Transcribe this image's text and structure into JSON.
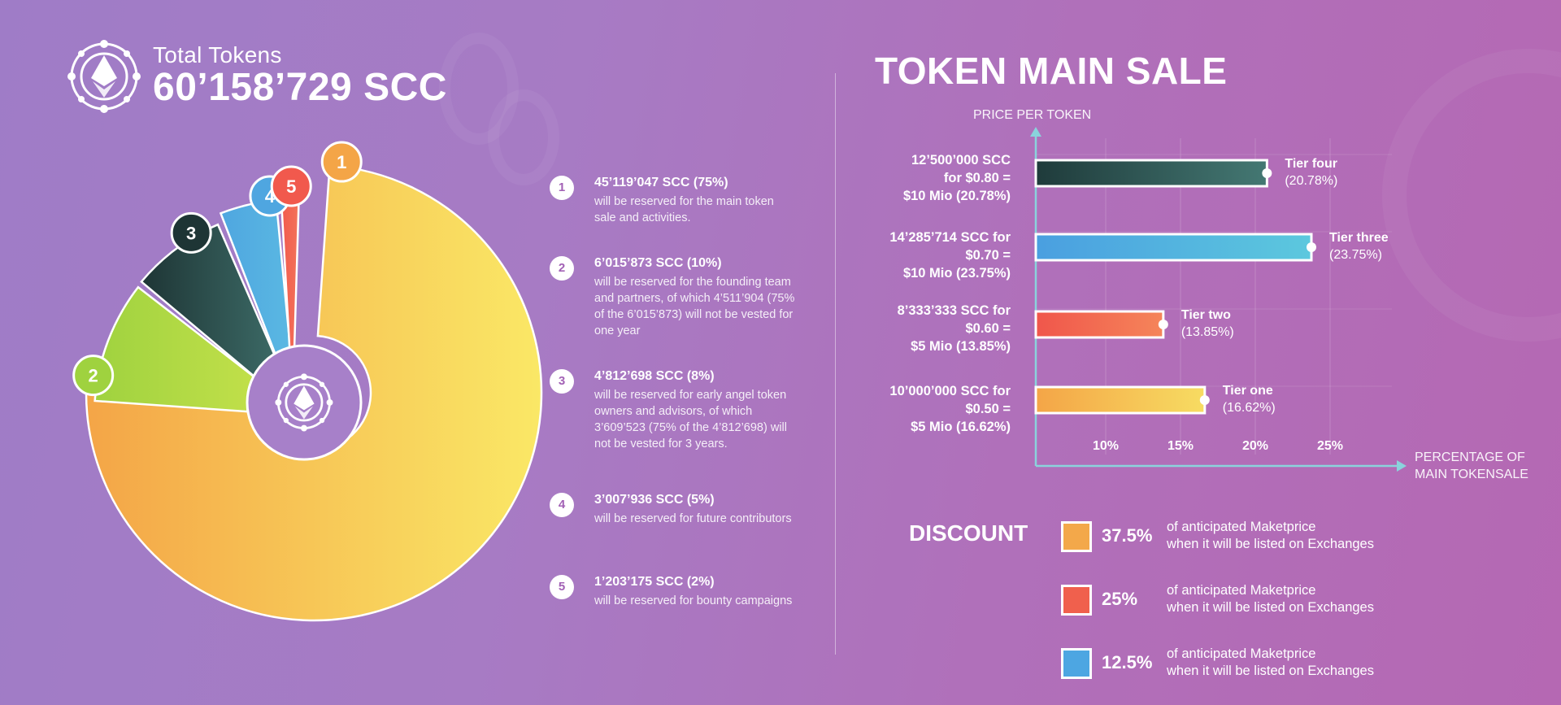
{
  "header": {
    "label": "Total Tokens",
    "value": "60’158’729 SCC",
    "logo": "token-emblem-icon"
  },
  "chart_data": [
    {
      "type": "pie",
      "title": "",
      "slices": [
        {
          "num": "1",
          "value": 75,
          "color": "#f4a547",
          "color2": "#fae866"
        },
        {
          "num": "2",
          "value": 10,
          "color": "#9fd23f",
          "color2": "#c2e04a"
        },
        {
          "num": "3",
          "value": 8,
          "color": "#1e3535",
          "color2": "#3c6a66"
        },
        {
          "num": "4",
          "value": 5,
          "color": "#4fa6e0",
          "color2": "#5ab8e2"
        },
        {
          "num": "5",
          "value": 2,
          "color": "#f1594d",
          "color2": "#f3745a"
        }
      ],
      "legend": [
        {
          "num": "1",
          "title": "45’119’047 SCC (75%)",
          "desc": "will be reserved for the main token sale and activities."
        },
        {
          "num": "2",
          "title": "6’015’873 SCC  (10%)",
          "desc": "will be reserved for the founding team and partners, of which 4’511’904 (75% of the 6’015’873) will not be vested for one year"
        },
        {
          "num": "3",
          "title": "4’812’698 SCC  (8%)",
          "desc": "will be reserved for early angel token owners and advisors, of which 3’609’523 (75% of the 4’812’698) will not be vested for 3 years."
        },
        {
          "num": "4",
          "title": "3’007’936 SCC (5%)",
          "desc": "will be reserved for future contributors"
        },
        {
          "num": "5",
          "title": "1’203’175 SCC  (2%)",
          "desc": "will be reserved for bounty campaigns"
        }
      ]
    },
    {
      "type": "bar",
      "orientation": "horizontal",
      "title": "TOKEN MAIN SALE",
      "ylabel": "PRICE PER TOKEN",
      "xlabel": "PERCENTAGE OF MAIN TOKENSALE",
      "x_ticks": [
        "10%",
        "15%",
        "20%",
        "25%"
      ],
      "x_tick_values": [
        10,
        15,
        20,
        25
      ],
      "xlim": [
        5.5,
        30
      ],
      "grid": true,
      "bars": [
        {
          "name": "Tier four",
          "pct_label": "(20.78%)",
          "value": 20.78,
          "desc": [
            "12’500’000 SCC",
            "for $0.80  =",
            "$10 Mio (20.78%)"
          ],
          "color": "#1f3b3b",
          "color2": "#447873"
        },
        {
          "name": "Tier three",
          "pct_label": "(23.75%)",
          "value": 23.75,
          "desc": [
            "14’285’714 SCC for",
            "$0.70  =",
            "$10 Mio (23.75%)"
          ],
          "color": "#4a9fe0",
          "color2": "#5cc8de"
        },
        {
          "name": "Tier two",
          "pct_label": "(13.85%)",
          "value": 13.85,
          "desc": [
            "8’333’333 SCC for",
            "$0.60  =",
            "$5 Mio (13.85%)"
          ],
          "color": "#f0564b",
          "color2": "#f5855a"
        },
        {
          "name": "Tier one",
          "pct_label": "(16.62%)",
          "value": 16.62,
          "desc": [
            "10’000’000 SCC  for",
            "$0.50 =",
            "$5 Mio (16.62%)"
          ],
          "color": "#f4a547",
          "color2": "#f7dc62"
        }
      ]
    }
  ],
  "discount": {
    "title": "DISCOUNT",
    "items": [
      {
        "pct": "37.5%",
        "text1": "of anticipated Maketprice",
        "text2": "when it will be listed on Exchanges",
        "color": "#f3a84a"
      },
      {
        "pct": "25%",
        "text1": "of anticipated Maketprice",
        "text2": "when it will be listed on Exchanges",
        "color": "#f0604d"
      },
      {
        "pct": "12.5%",
        "text1": "of anticipated Maketprice",
        "text2": "when it will be listed on Exchanges",
        "color": "#4da6e2"
      }
    ]
  }
}
